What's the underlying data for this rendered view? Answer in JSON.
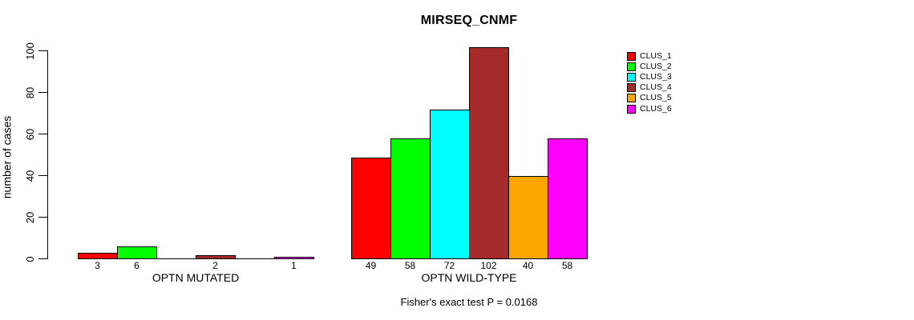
{
  "chart_data": {
    "type": "bar",
    "title": "MIRSEQ_CNMF",
    "ylabel": "number of cases",
    "ylim": [
      0,
      100
    ],
    "yticks": [
      0,
      20,
      40,
      60,
      80,
      100
    ],
    "grid": false,
    "legend_position": "top-right",
    "categories": [
      "OPTN MUTATED",
      "OPTN WILD-TYPE"
    ],
    "series": [
      {
        "name": "CLUS_1",
        "color": "#FF0000",
        "values": [
          3,
          49
        ]
      },
      {
        "name": "CLUS_2",
        "color": "#00FF00",
        "values": [
          6,
          58
        ]
      },
      {
        "name": "CLUS_3",
        "color": "#00FFFF",
        "values": [
          0,
          72
        ]
      },
      {
        "name": "CLUS_4",
        "color": "#A52A2A",
        "values": [
          2,
          102
        ]
      },
      {
        "name": "CLUS_5",
        "color": "#FFA500",
        "values": [
          0,
          40
        ]
      },
      {
        "name": "CLUS_6",
        "color": "#FF00FF",
        "values": [
          1,
          58
        ]
      }
    ],
    "bar_value_labels": {
      "OPTN MUTATED": [
        "3",
        "6",
        "",
        "2",
        "",
        "1"
      ],
      "OPTN WILD-TYPE": [
        "49",
        "58",
        "72",
        "102",
        "40",
        "58"
      ]
    },
    "annotation": "Fisher's exact test P = 0.0168",
    "axis_color": "#000000",
    "background_color": "#FFFFFF"
  }
}
